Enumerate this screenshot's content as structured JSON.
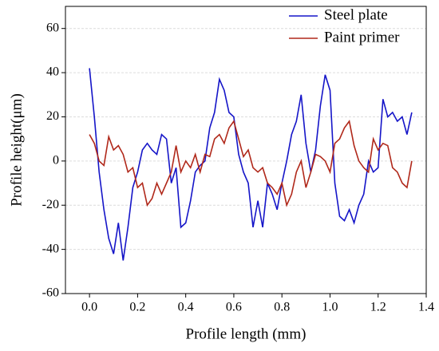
{
  "chart_data": {
    "type": "line",
    "xlabel": "Profile length (mm)",
    "ylabel": "Profile height(μm)",
    "x": [
      0,
      0.02,
      0.04,
      0.06,
      0.08,
      0.1,
      0.12,
      0.14,
      0.16,
      0.18,
      0.2,
      0.22,
      0.24,
      0.26,
      0.28,
      0.3,
      0.32,
      0.34,
      0.36,
      0.38,
      0.4,
      0.42,
      0.44,
      0.46,
      0.48,
      0.5,
      0.52,
      0.54,
      0.56,
      0.58,
      0.6,
      0.62,
      0.64,
      0.66,
      0.68,
      0.7,
      0.72,
      0.74,
      0.76,
      0.78,
      0.8,
      0.82,
      0.84,
      0.86,
      0.88,
      0.9,
      0.92,
      0.94,
      0.96,
      0.98,
      1,
      1.02,
      1.04,
      1.06,
      1.08,
      1.1,
      1.12,
      1.14,
      1.16,
      1.18,
      1.2,
      1.22,
      1.24,
      1.26,
      1.28,
      1.3,
      1.32,
      1.34
    ],
    "series": [
      {
        "name": "Steel plate",
        "color": "#1515c8",
        "values": [
          42,
          20,
          -5,
          -22,
          -35,
          -42,
          -28,
          -45,
          -30,
          -12,
          -5,
          5,
          8,
          5,
          3,
          12,
          10,
          -10,
          -3,
          -30,
          -28,
          -18,
          -5,
          -2,
          0,
          15,
          22,
          37,
          32,
          22,
          20,
          3,
          -5,
          -10,
          -30,
          -18,
          -30,
          -10,
          -15,
          -22,
          -10,
          0,
          12,
          18,
          30,
          8,
          -5,
          5,
          25,
          39,
          32,
          -10,
          -25,
          -27,
          -22,
          -28,
          -20,
          -15,
          0,
          -5,
          -3,
          28,
          20,
          22,
          18,
          20,
          12,
          22
        ]
      },
      {
        "name": "Paint primer",
        "color": "#b0281a",
        "values": [
          12,
          8,
          0,
          -2,
          11,
          5,
          7,
          3,
          -5,
          -3,
          -12,
          -10,
          -20,
          -17,
          -10,
          -15,
          -10,
          -5,
          7,
          -5,
          0,
          -3,
          3,
          -5,
          3,
          2,
          10,
          12,
          8,
          15,
          18,
          10,
          2,
          5,
          -3,
          -5,
          -3,
          -10,
          -12,
          -15,
          -10,
          -20,
          -15,
          -5,
          0,
          -12,
          -5,
          3,
          2,
          0,
          -5,
          8,
          10,
          15,
          18,
          7,
          0,
          -3,
          -5,
          10,
          5,
          8,
          7,
          -3,
          -5,
          -10,
          -12,
          0
        ]
      }
    ],
    "xlim": [
      -0.1,
      1.4
    ],
    "xticks": [
      {
        "value": 0,
        "label": "0.0"
      },
      0.2,
      0.4,
      0.6,
      0.8,
      {
        "value": 1,
        "label": "1.0"
      },
      1.2,
      1.4
    ],
    "ylim": [
      -60,
      70
    ],
    "yticks": [
      -60,
      -40,
      -20,
      0,
      20,
      40,
      60
    ],
    "grid": true,
    "legend": "top-right"
  }
}
